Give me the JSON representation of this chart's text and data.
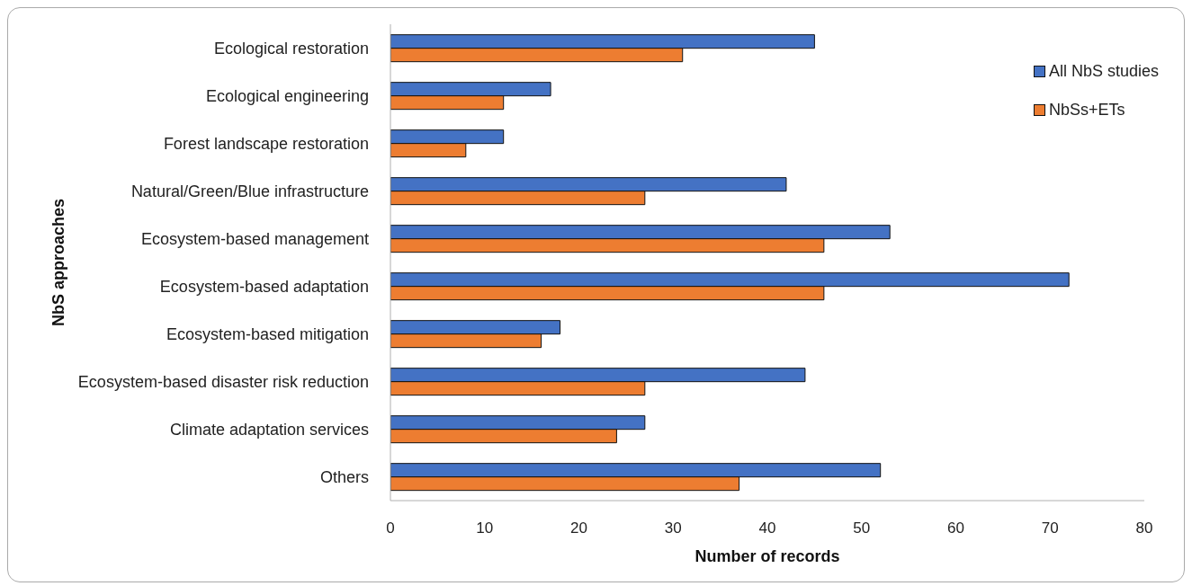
{
  "chart_data": {
    "type": "bar",
    "orientation": "horizontal",
    "xlabel": "Number of records",
    "ylabel": "NbS approaches",
    "categories": [
      "Ecological restoration",
      "Ecological engineering",
      "Forest landscape restoration",
      "Natural/Green/Blue infrastructure",
      "Ecosystem-based management",
      "Ecosystem-based adaptation",
      "Ecosystem-based mitigation",
      "Ecosystem-based disaster risk reduction",
      "Climate adaptation services",
      "Others"
    ],
    "series": [
      {
        "name": "All NbS studies",
        "color": "#4472c4",
        "values": [
          45,
          17,
          12,
          42,
          53,
          72,
          18,
          44,
          27,
          52
        ]
      },
      {
        "name": "NbSs+ETs",
        "color": "#ed7d31",
        "values": [
          31,
          12,
          8,
          27,
          46,
          46,
          16,
          27,
          24,
          37
        ]
      }
    ],
    "xlim": [
      0,
      80
    ],
    "xticks": [
      0,
      10,
      20,
      30,
      40,
      50,
      60,
      70,
      80
    ],
    "grid": false,
    "legend": "top right"
  }
}
